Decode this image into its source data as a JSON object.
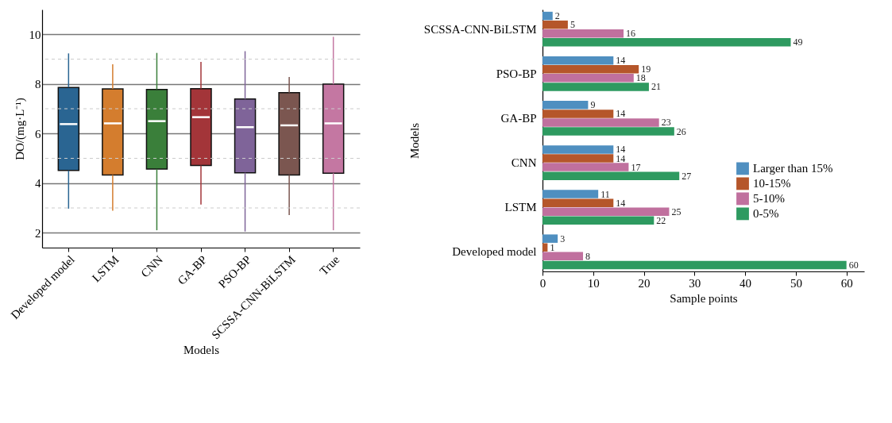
{
  "chart_data": [
    {
      "type": "box",
      "xlabel": "Models",
      "ylabel": "DO/(mg·L⁻¹)",
      "categories": [
        "Developed model",
        "LSTM",
        "CNN",
        "GA-BP",
        "PSO-BP",
        "SCSSA-CNN-BiLSTM",
        "True"
      ],
      "colors": [
        "#2a6592",
        "#d47d2e",
        "#3a7f3a",
        "#a33539",
        "#7f6499",
        "#7b5650",
        "#c477a2"
      ],
      "boxes": [
        {
          "low": 2.97,
          "q1": 4.51,
          "median": 6.38,
          "q3": 7.86,
          "high": 9.23
        },
        {
          "low": 2.89,
          "q1": 4.33,
          "median": 6.41,
          "q3": 7.8,
          "high": 8.79
        },
        {
          "low": 2.1,
          "q1": 4.57,
          "median": 6.5,
          "q3": 7.78,
          "high": 9.25
        },
        {
          "low": 3.14,
          "q1": 4.71,
          "median": 6.66,
          "q3": 7.81,
          "high": 8.89
        },
        {
          "low": 2.05,
          "q1": 4.42,
          "median": 6.26,
          "q3": 7.39,
          "high": 9.32
        },
        {
          "low": 2.71,
          "q1": 4.33,
          "median": 6.33,
          "q3": 7.65,
          "high": 8.28
        },
        {
          "low": 2.1,
          "q1": 4.4,
          "median": 6.41,
          "q3": 7.99,
          "high": 9.9
        }
      ],
      "ylim": [
        1.4,
        11
      ],
      "yticks": [
        2,
        {
          "value": 3,
          "label": null
        },
        4,
        {
          "value": 5,
          "label": null
        },
        6,
        {
          "value": 7,
          "label": null
        },
        8,
        {
          "value": 9,
          "label": null
        },
        10
      ],
      "grid": "y",
      "legend": false
    },
    {
      "type": "bar",
      "orientation": "horizontal",
      "xlabel": "Sample points",
      "ylabel": "Models",
      "categories": [
        "SCSSA-CNN-BiLSTM",
        "PSO-BP",
        "GA-BP",
        "CNN",
        "LSTM",
        "Developed model"
      ],
      "series": [
        {
          "name": "Larger than 15%",
          "color": "#4f8fc0",
          "values": [
            2,
            14,
            9,
            14,
            11,
            3
          ]
        },
        {
          "name": "10-15%",
          "color": "#b5562a",
          "values": [
            5,
            19,
            14,
            14,
            14,
            1
          ]
        },
        {
          "name": "5-10%",
          "color": "#c0709e",
          "values": [
            16,
            18,
            23,
            17,
            25,
            8
          ]
        },
        {
          "name": "0-5%",
          "color": "#2e9a60",
          "values": [
            49,
            21,
            26,
            27,
            22,
            60
          ]
        }
      ],
      "xlim": [
        0,
        63.5
      ],
      "xticks": [
        0,
        10,
        20,
        30,
        40,
        50,
        60
      ],
      "data_labels": true,
      "legend": "right",
      "grid": false
    }
  ]
}
